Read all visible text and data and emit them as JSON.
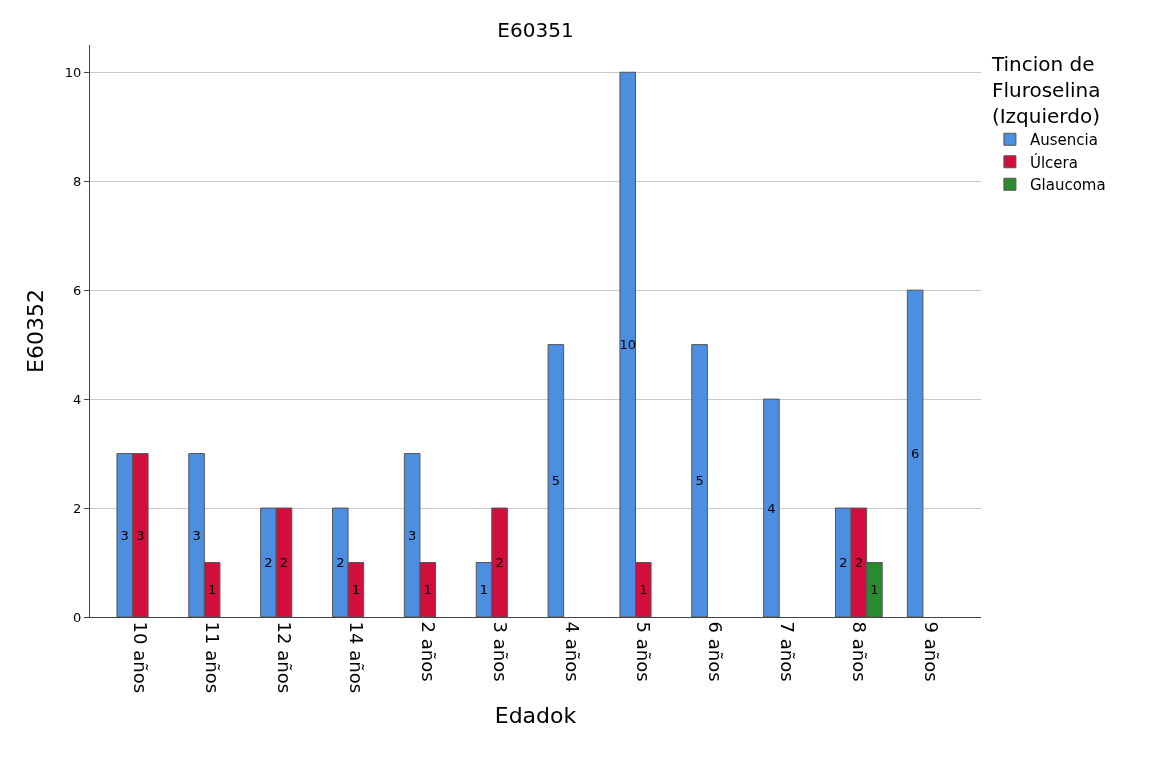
{
  "chart_data": {
    "type": "bar",
    "title": "E60351",
    "xlabel": "Edadok",
    "ylabel": "E60352",
    "legend_title": "Tincion de Fluroselina (Izquierdo)",
    "categories": [
      "10 años",
      "11 años",
      "12 años",
      "14 años",
      "2 años",
      "3 años",
      "4 años",
      "5 años",
      "6 años",
      "7 años",
      "8 años",
      "9 años"
    ],
    "series": [
      {
        "name": "Ausencia",
        "color": "#4c8fe0",
        "values": [
          3,
          3,
          2,
          2,
          3,
          1,
          5,
          10,
          5,
          4,
          2,
          6
        ]
      },
      {
        "name": "Úlcera",
        "color": "#d20f3c",
        "values": [
          3,
          1,
          2,
          1,
          1,
          2,
          null,
          1,
          null,
          null,
          2,
          null
        ]
      },
      {
        "name": "Glaucoma",
        "color": "#2a8a2e",
        "values": [
          null,
          null,
          null,
          null,
          null,
          null,
          null,
          null,
          null,
          null,
          1,
          null
        ]
      }
    ],
    "ylim": [
      0,
      10.5
    ],
    "yticks": [
      0,
      2,
      4,
      6,
      8,
      10
    ],
    "grid": "y",
    "legend": "top right",
    "data_labels": true
  }
}
